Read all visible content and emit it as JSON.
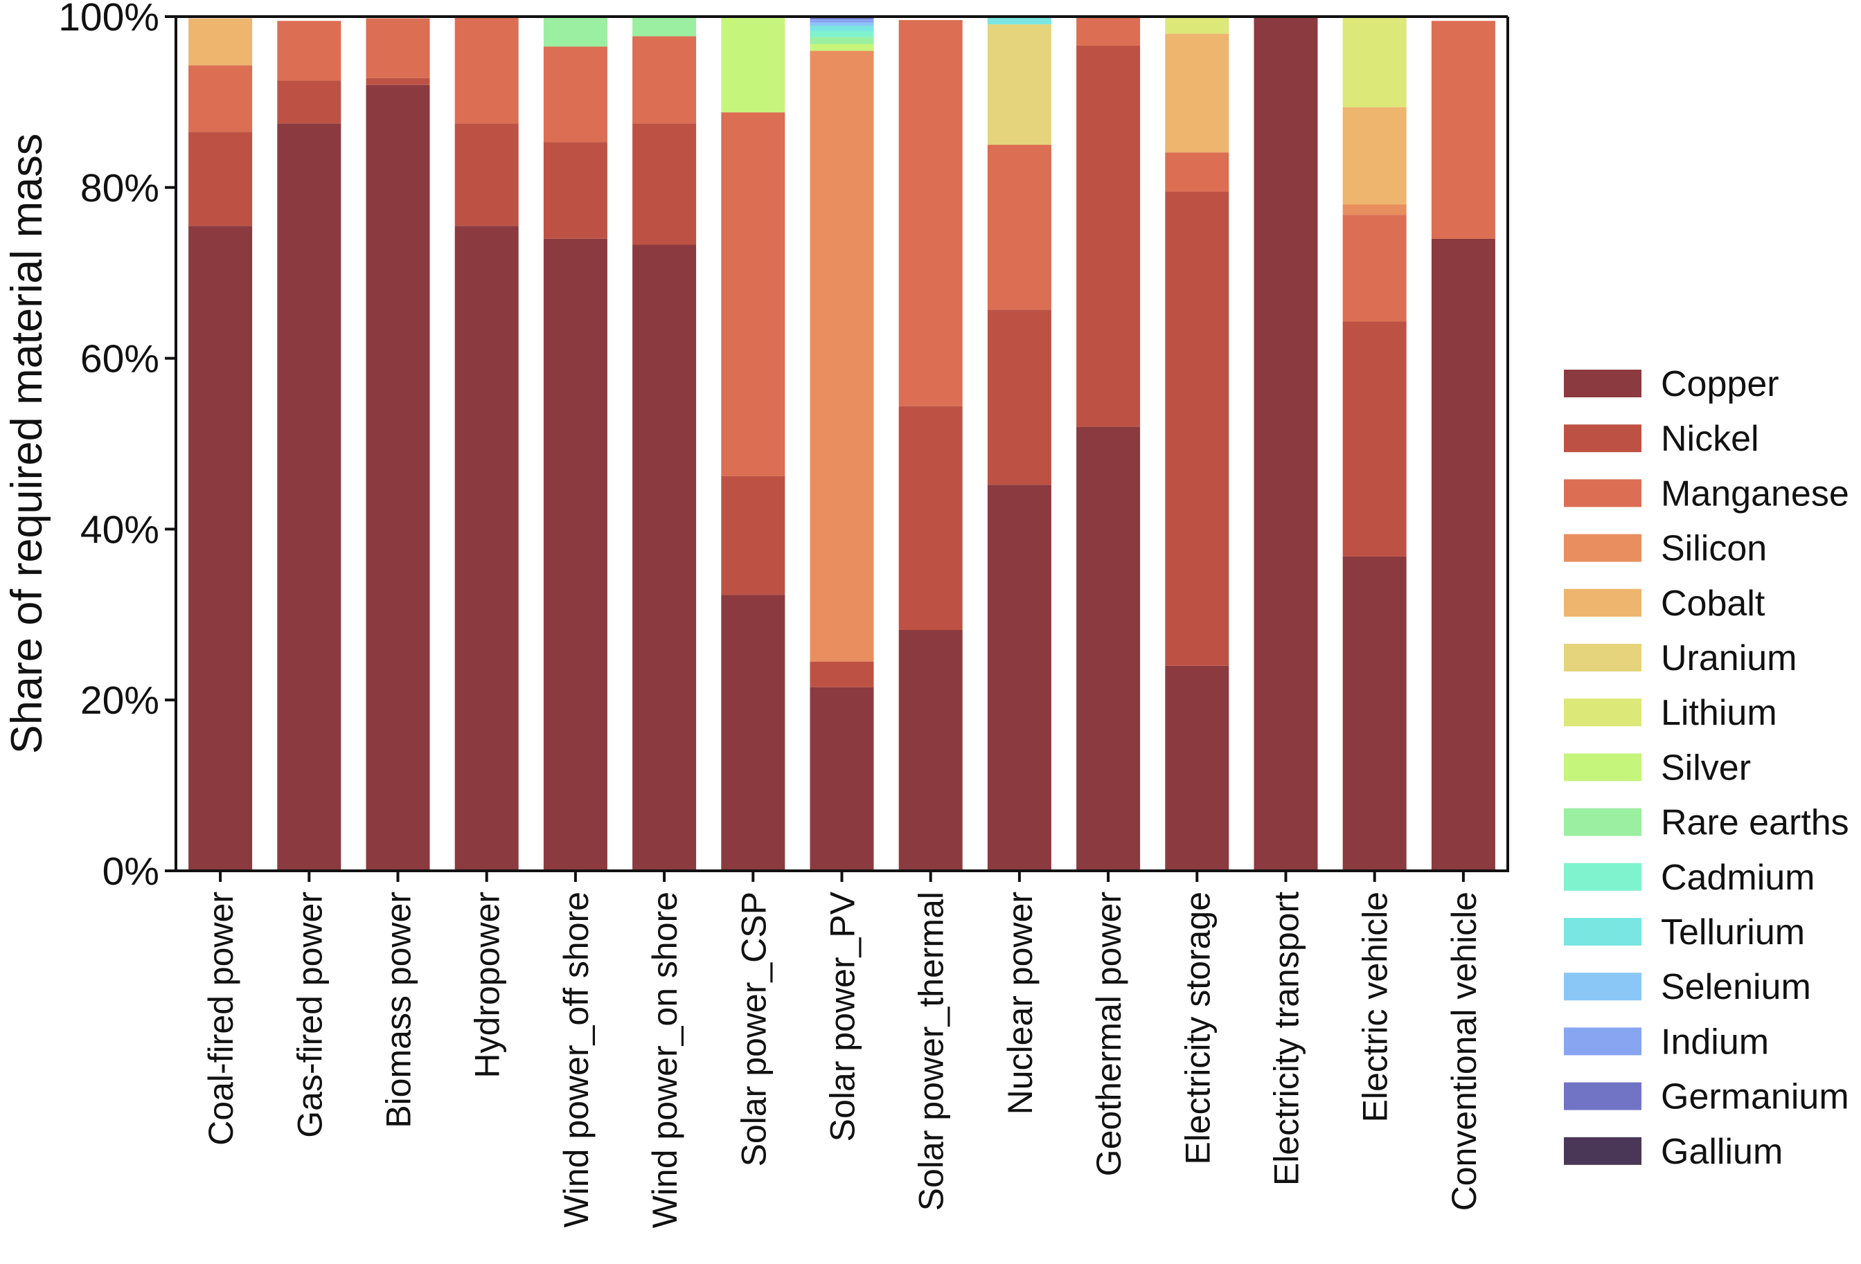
{
  "chart_data": {
    "type": "bar",
    "stacked": true,
    "title": "",
    "xlabel": "",
    "ylabel": "Share of required material mass",
    "ylim": [
      0,
      100
    ],
    "ytick_labels": [
      "0%",
      "20%",
      "40%",
      "60%",
      "80%",
      "100%"
    ],
    "legend_position": "right",
    "categories": [
      "Coal-fired power",
      "Gas-fired power",
      "Biomass power",
      "Hydropower",
      "Wind power_off shore",
      "Wind power_on shore",
      "Solar power_CSP",
      "Solar power_PV",
      "Solar power_thermal",
      "Nuclear power",
      "Geothermal power",
      "Electricity storage",
      "Electricity transport",
      "Electric vehicle",
      "Conventional vehicle"
    ],
    "series": [
      {
        "name": "Copper",
        "color": "#8B3A3F",
        "values": [
          75.5,
          87.5,
          92.0,
          75.5,
          74.0,
          73.3,
          32.3,
          21.5,
          28.2,
          45.2,
          52.0,
          24.0,
          100.0,
          36.8,
          74.0
        ]
      },
      {
        "name": "Nickel",
        "color": "#BD5244",
        "values": [
          11.0,
          5.0,
          0.8,
          12.0,
          11.3,
          14.2,
          13.9,
          3.0,
          26.2,
          20.5,
          44.6,
          55.5,
          0.0,
          27.5,
          0.0
        ]
      },
      {
        "name": "Manganese",
        "color": "#DB6E53",
        "values": [
          7.8,
          7.0,
          7.0,
          12.5,
          11.2,
          10.2,
          42.6,
          0.0,
          45.2,
          19.3,
          3.3,
          4.6,
          0.0,
          12.5,
          25.5
        ]
      },
      {
        "name": "Silicon",
        "color": "#E98E5E",
        "values": [
          0.0,
          0.0,
          0.0,
          0.0,
          0.0,
          0.0,
          0.0,
          71.5,
          0.0,
          0.0,
          0.0,
          0.0,
          0.0,
          1.2,
          0.0
        ]
      },
      {
        "name": "Cobalt",
        "color": "#EDB56E",
        "values": [
          5.5,
          0.0,
          0.0,
          0.0,
          0.0,
          0.0,
          0.0,
          0.0,
          0.0,
          0.0,
          0.0,
          13.9,
          0.0,
          11.4,
          0.0
        ]
      },
      {
        "name": "Uranium",
        "color": "#E5D47C",
        "values": [
          0.0,
          0.0,
          0.0,
          0.0,
          0.0,
          0.0,
          0.0,
          0.0,
          0.0,
          14.1,
          0.0,
          0.0,
          0.0,
          0.0,
          0.0
        ]
      },
      {
        "name": "Lithium",
        "color": "#DCE878",
        "values": [
          0.0,
          0.0,
          0.0,
          0.0,
          0.0,
          0.0,
          0.0,
          0.0,
          0.0,
          0.0,
          0.0,
          2.0,
          0.0,
          10.6,
          0.0
        ]
      },
      {
        "name": "Silver",
        "color": "#C6F57C",
        "values": [
          0.0,
          0.0,
          0.0,
          0.0,
          0.0,
          0.0,
          11.2,
          0.8,
          0.0,
          0.0,
          0.0,
          0.0,
          0.0,
          0.0,
          0.0
        ]
      },
      {
        "name": "Rare earths",
        "color": "#9BEFA0",
        "values": [
          0.0,
          0.0,
          0.0,
          0.0,
          3.5,
          2.3,
          0.0,
          0.8,
          0.0,
          0.0,
          0.0,
          0.0,
          0.0,
          0.0,
          0.0
        ]
      },
      {
        "name": "Cadmium",
        "color": "#7EF3CE",
        "values": [
          0.0,
          0.0,
          0.0,
          0.0,
          0.0,
          0.0,
          0.0,
          0.7,
          0.0,
          0.0,
          0.0,
          0.0,
          0.0,
          0.0,
          0.0
        ]
      },
      {
        "name": "Tellurium",
        "color": "#79E6E2",
        "values": [
          0.0,
          0.0,
          0.0,
          0.0,
          0.0,
          0.0,
          0.0,
          0.6,
          0.0,
          0.9,
          0.0,
          0.0,
          0.0,
          0.0,
          0.0
        ]
      },
      {
        "name": "Selenium",
        "color": "#8AC7F7",
        "values": [
          0.0,
          0.0,
          0.0,
          0.0,
          0.0,
          0.0,
          0.0,
          0.4,
          0.0,
          0.0,
          0.0,
          0.0,
          0.0,
          0.0,
          0.0
        ]
      },
      {
        "name": "Indium",
        "color": "#88A5F2",
        "values": [
          0.0,
          0.0,
          0.0,
          0.0,
          0.0,
          0.0,
          0.0,
          0.4,
          0.0,
          0.0,
          0.0,
          0.0,
          0.0,
          0.0,
          0.0
        ]
      },
      {
        "name": "Germanium",
        "color": "#7174C4",
        "values": [
          0.0,
          0.0,
          0.0,
          0.0,
          0.0,
          0.0,
          0.0,
          0.3,
          0.0,
          0.0,
          0.0,
          0.0,
          0.0,
          0.0,
          0.0
        ]
      },
      {
        "name": "Gallium",
        "color": "#4A3657",
        "values": [
          0.0,
          0.0,
          0.0,
          0.0,
          0.0,
          0.0,
          0.0,
          0.0,
          0.0,
          0.0,
          0.0,
          0.0,
          0.0,
          0.0,
          0.0
        ]
      }
    ]
  }
}
